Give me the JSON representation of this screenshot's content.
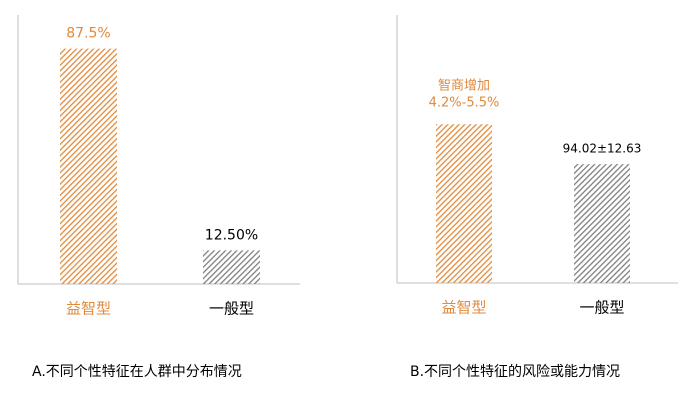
{
  "chart_data": [
    {
      "type": "bar",
      "caption": "A.不同个性特征在人群中分布情况",
      "categories": [
        "益智型",
        "一般型"
      ],
      "values": [
        87.5,
        12.5
      ],
      "value_labels": [
        "87.5%",
        "12.50%"
      ],
      "colors": [
        "#e08a3c",
        "#7f7f7f"
      ],
      "label_colors": [
        "#e08a3c",
        "#000000"
      ],
      "ylim": [
        0,
        100
      ]
    },
    {
      "type": "bar",
      "caption": "B.不同个性特征的风险或能力情况",
      "categories": [
        "益智型",
        "一般型"
      ],
      "values": [
        125.6,
        94.02
      ],
      "value_labels": [
        null,
        "94.02±12.63"
      ],
      "annotations": [
        "智商增加",
        "4.2%-5.5%"
      ],
      "colors": [
        "#e08a3c",
        "#7f7f7f"
      ],
      "label_colors": [
        "#e08a3c",
        "#000000"
      ],
      "ylim": [
        0,
        212
      ]
    }
  ]
}
